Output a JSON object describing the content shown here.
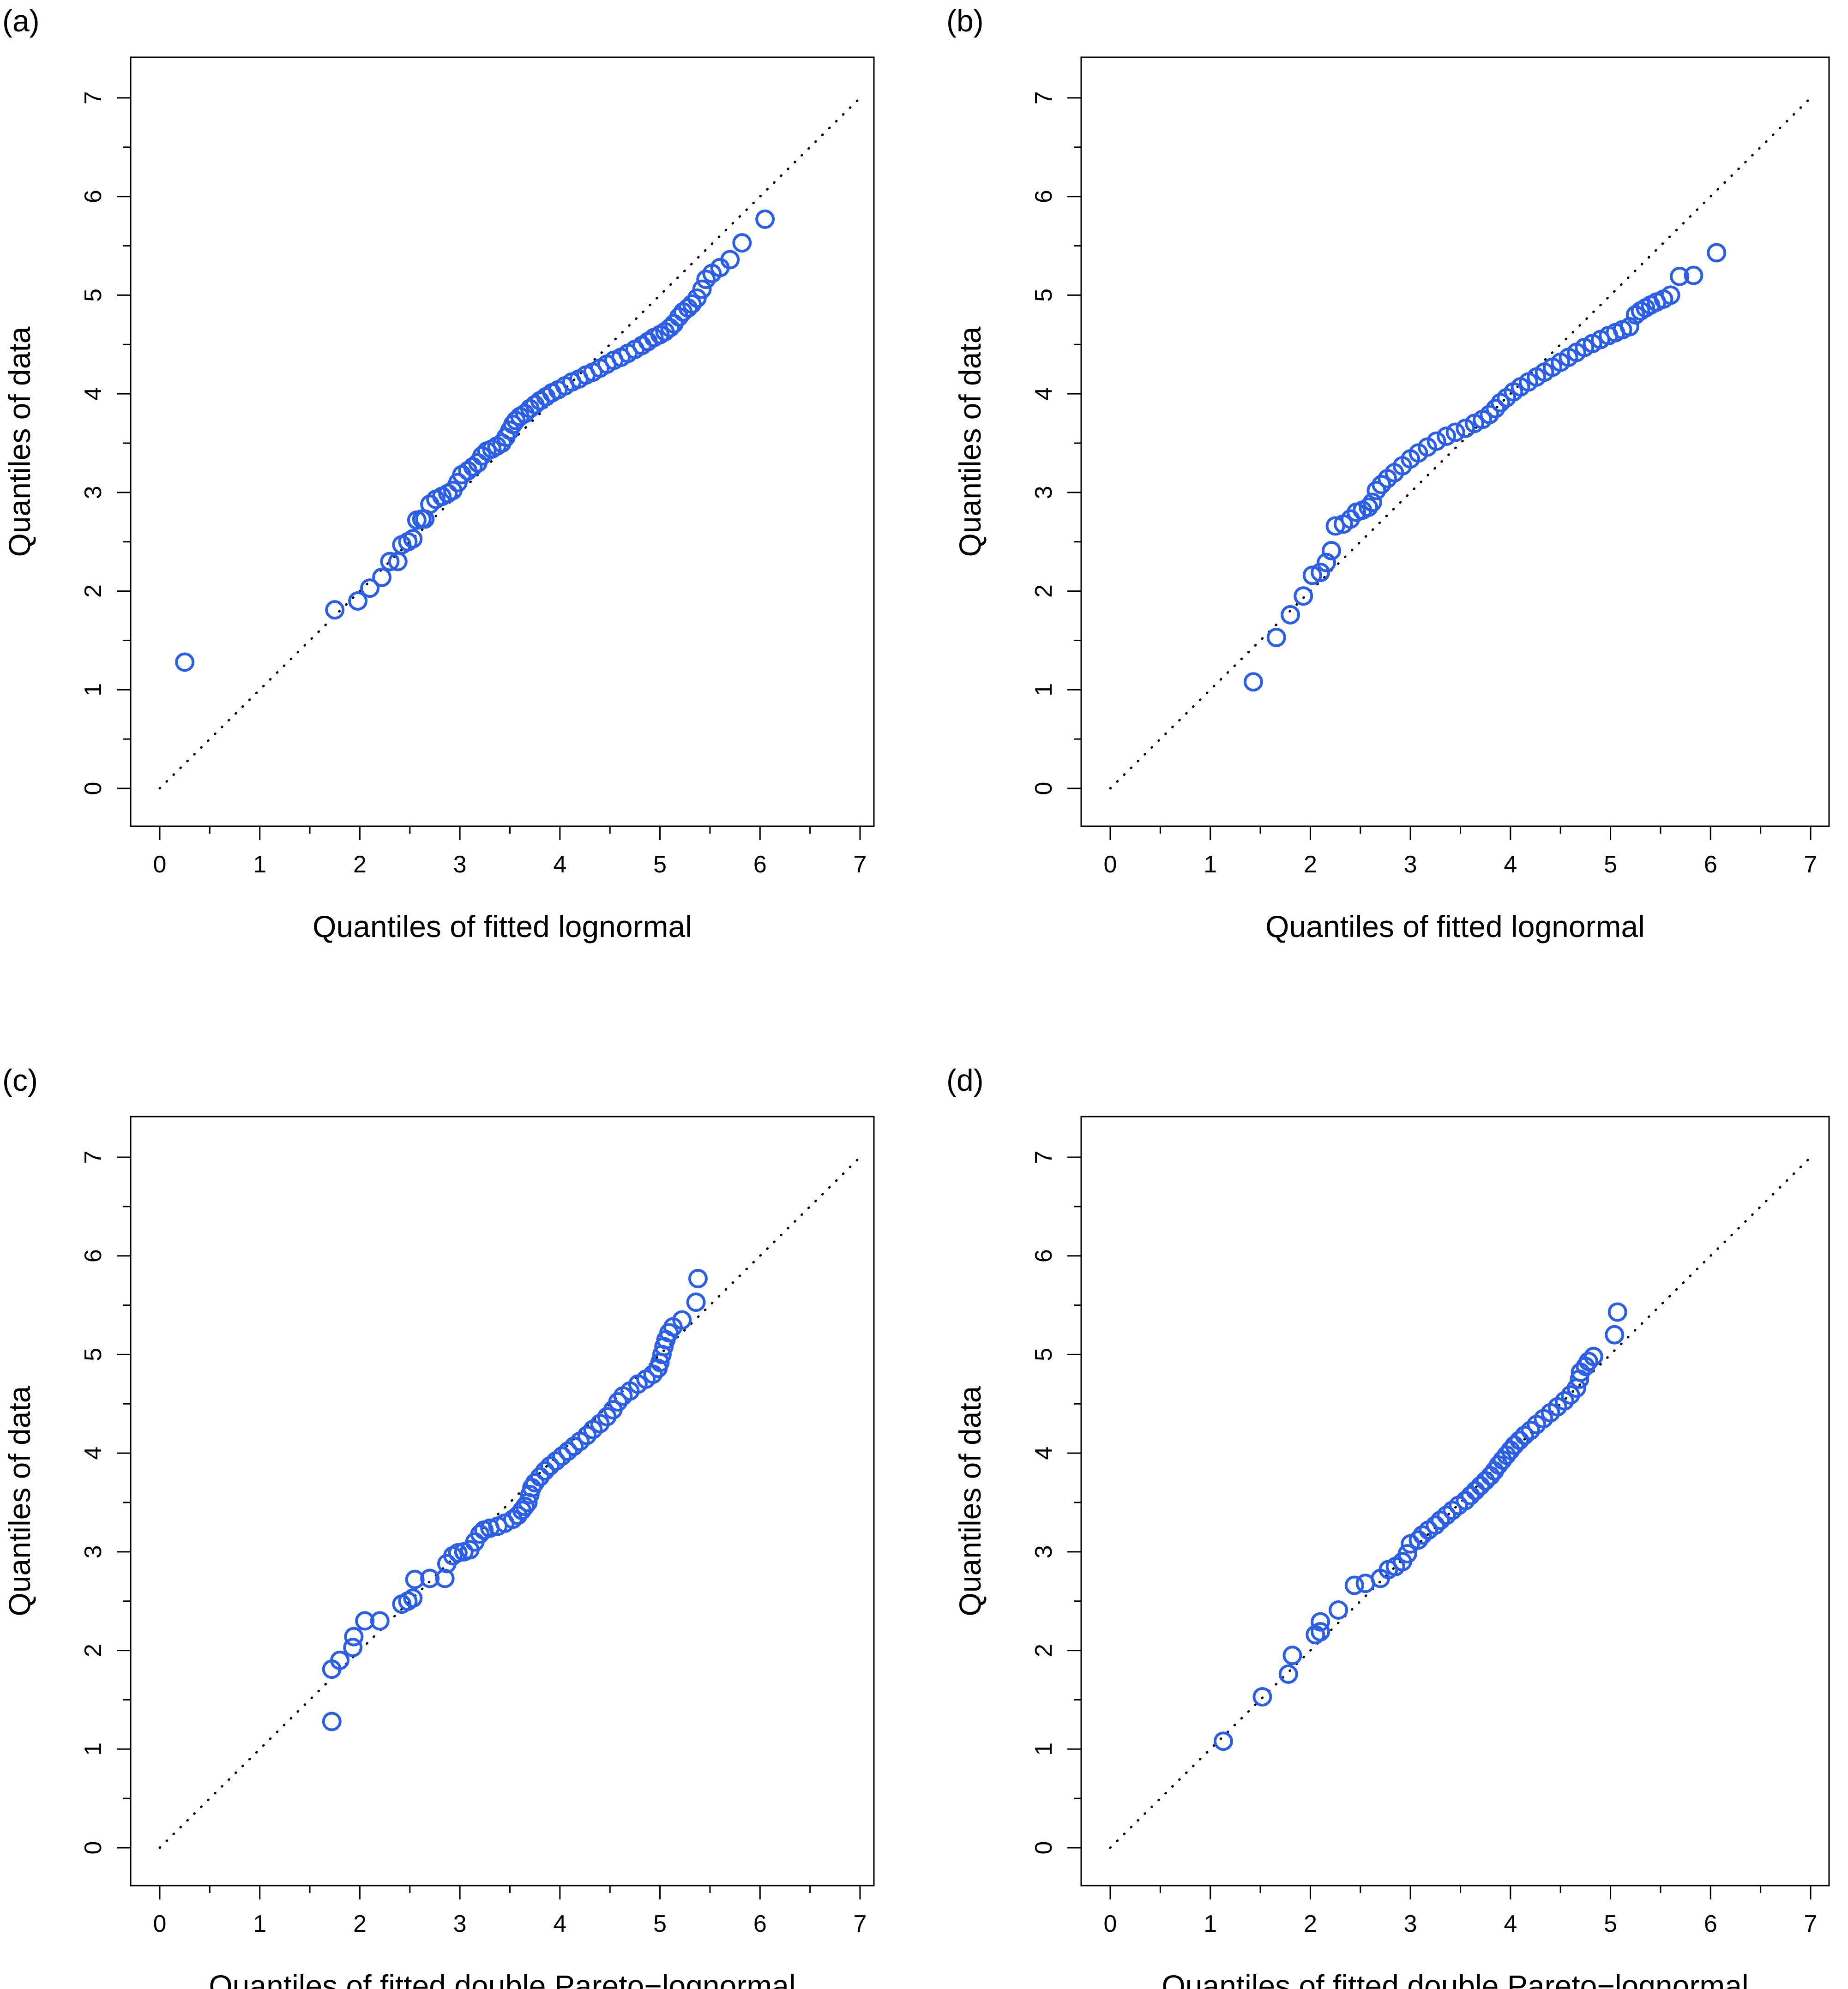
{
  "page": {
    "background": "#ffffff"
  },
  "style": {
    "marker_color": "#2b5fe8",
    "reference_line_color": "#000000",
    "axis_color": "#000000"
  },
  "chart_data": [
    {
      "panel_label": "(a)",
      "type": "scatter",
      "xlabel": "Quantiles of fitted lognormal",
      "ylabel": "Quantiles of data",
      "xlim": [
        0,
        7
      ],
      "ylim": [
        0,
        7
      ],
      "xticks": [
        "0",
        "1",
        "2",
        "3",
        "4",
        "5",
        "6",
        "7"
      ],
      "yticks": [
        "0",
        "1",
        "2",
        "3",
        "4",
        "5",
        "6",
        "7"
      ],
      "grid": false,
      "reference_line": {
        "style": "dotted",
        "x": [
          0,
          7
        ],
        "y": [
          0,
          7
        ]
      },
      "points": [
        [
          0.25,
          1.28
        ],
        [
          1.75,
          1.81
        ],
        [
          1.98,
          1.9
        ],
        [
          2.1,
          2.03
        ],
        [
          2.22,
          2.14
        ],
        [
          2.3,
          2.3
        ],
        [
          2.38,
          2.3
        ],
        [
          2.42,
          2.47
        ],
        [
          2.48,
          2.5
        ],
        [
          2.53,
          2.53
        ],
        [
          2.57,
          2.72
        ],
        [
          2.62,
          2.73
        ],
        [
          2.65,
          2.73
        ],
        [
          2.7,
          2.88
        ],
        [
          2.76,
          2.93
        ],
        [
          2.82,
          2.96
        ],
        [
          2.88,
          2.99
        ],
        [
          2.93,
          3.02
        ],
        [
          2.98,
          3.1
        ],
        [
          3.02,
          3.18
        ],
        [
          3.08,
          3.22
        ],
        [
          3.13,
          3.26
        ],
        [
          3.18,
          3.3
        ],
        [
          3.22,
          3.37
        ],
        [
          3.27,
          3.42
        ],
        [
          3.32,
          3.44
        ],
        [
          3.37,
          3.47
        ],
        [
          3.42,
          3.5
        ],
        [
          3.46,
          3.56
        ],
        [
          3.5,
          3.63
        ],
        [
          3.53,
          3.69
        ],
        [
          3.56,
          3.73
        ],
        [
          3.6,
          3.77
        ],
        [
          3.65,
          3.8
        ],
        [
          3.7,
          3.85
        ],
        [
          3.75,
          3.89
        ],
        [
          3.8,
          3.93
        ],
        [
          3.86,
          3.97
        ],
        [
          3.92,
          4.01
        ],
        [
          3.98,
          4.04
        ],
        [
          4.05,
          4.08
        ],
        [
          4.12,
          4.12
        ],
        [
          4.19,
          4.15
        ],
        [
          4.26,
          4.19
        ],
        [
          4.33,
          4.22
        ],
        [
          4.4,
          4.26
        ],
        [
          4.47,
          4.3
        ],
        [
          4.54,
          4.34
        ],
        [
          4.61,
          4.37
        ],
        [
          4.68,
          4.41
        ],
        [
          4.75,
          4.45
        ],
        [
          4.82,
          4.49
        ],
        [
          4.88,
          4.53
        ],
        [
          4.94,
          4.57
        ],
        [
          5.0,
          4.6
        ],
        [
          5.05,
          4.63
        ],
        [
          5.1,
          4.67
        ],
        [
          5.14,
          4.71
        ],
        [
          5.19,
          4.78
        ],
        [
          5.23,
          4.83
        ],
        [
          5.28,
          4.87
        ],
        [
          5.32,
          4.91
        ],
        [
          5.37,
          4.97
        ],
        [
          5.42,
          5.06
        ],
        [
          5.46,
          5.16
        ],
        [
          5.52,
          5.22
        ],
        [
          5.6,
          5.28
        ],
        [
          5.7,
          5.36
        ],
        [
          5.82,
          5.53
        ],
        [
          6.05,
          5.77
        ]
      ]
    },
    {
      "panel_label": "(b)",
      "type": "scatter",
      "xlabel": "Quantiles of fitted lognormal",
      "ylabel": "Quantiles of data",
      "xlim": [
        0,
        7
      ],
      "ylim": [
        0,
        7
      ],
      "xticks": [
        "0",
        "1",
        "2",
        "3",
        "4",
        "5",
        "6",
        "7"
      ],
      "yticks": [
        "0",
        "1",
        "2",
        "3",
        "4",
        "5",
        "6",
        "7"
      ],
      "grid": false,
      "reference_line": {
        "style": "dotted",
        "x": [
          0,
          7
        ],
        "y": [
          0,
          7
        ]
      },
      "points": [
        [
          1.43,
          1.08
        ],
        [
          1.66,
          1.53
        ],
        [
          1.8,
          1.76
        ],
        [
          1.93,
          1.95
        ],
        [
          2.02,
          2.16
        ],
        [
          2.1,
          2.19
        ],
        [
          2.16,
          2.29
        ],
        [
          2.21,
          2.41
        ],
        [
          2.25,
          2.66
        ],
        [
          2.33,
          2.68
        ],
        [
          2.4,
          2.73
        ],
        [
          2.46,
          2.8
        ],
        [
          2.52,
          2.82
        ],
        [
          2.58,
          2.85
        ],
        [
          2.62,
          2.9
        ],
        [
          2.66,
          3.02
        ],
        [
          2.71,
          3.08
        ],
        [
          2.77,
          3.14
        ],
        [
          2.84,
          3.2
        ],
        [
          2.92,
          3.27
        ],
        [
          3.0,
          3.34
        ],
        [
          3.08,
          3.4
        ],
        [
          3.17,
          3.46
        ],
        [
          3.26,
          3.52
        ],
        [
          3.36,
          3.57
        ],
        [
          3.45,
          3.61
        ],
        [
          3.55,
          3.65
        ],
        [
          3.64,
          3.7
        ],
        [
          3.72,
          3.74
        ],
        [
          3.79,
          3.79
        ],
        [
          3.85,
          3.85
        ],
        [
          3.9,
          3.91
        ],
        [
          3.96,
          3.96
        ],
        [
          4.03,
          4.02
        ],
        [
          4.1,
          4.07
        ],
        [
          4.18,
          4.12
        ],
        [
          4.26,
          4.17
        ],
        [
          4.34,
          4.22
        ],
        [
          4.42,
          4.27
        ],
        [
          4.5,
          4.32
        ],
        [
          4.58,
          4.37
        ],
        [
          4.66,
          4.42
        ],
        [
          4.74,
          4.47
        ],
        [
          4.82,
          4.51
        ],
        [
          4.9,
          4.55
        ],
        [
          4.98,
          4.59
        ],
        [
          5.05,
          4.62
        ],
        [
          5.12,
          4.65
        ],
        [
          5.19,
          4.68
        ],
        [
          5.25,
          4.8
        ],
        [
          5.3,
          4.84
        ],
        [
          5.35,
          4.87
        ],
        [
          5.4,
          4.9
        ],
        [
          5.46,
          4.93
        ],
        [
          5.53,
          4.96
        ],
        [
          5.6,
          5.0
        ],
        [
          5.69,
          5.19
        ],
        [
          5.83,
          5.2
        ],
        [
          6.06,
          5.43
        ]
      ]
    },
    {
      "panel_label": "(c)",
      "type": "scatter",
      "xlabel": "Quantiles of fitted double Pareto−lognormal",
      "ylabel": "Quantiles of data",
      "xlim": [
        0,
        7
      ],
      "ylim": [
        0,
        7
      ],
      "xticks": [
        "0",
        "1",
        "2",
        "3",
        "4",
        "5",
        "6",
        "7"
      ],
      "yticks": [
        "0",
        "1",
        "2",
        "3",
        "4",
        "5",
        "6",
        "7"
      ],
      "grid": false,
      "reference_line": {
        "style": "dotted",
        "x": [
          0,
          7
        ],
        "y": [
          0,
          7
        ]
      },
      "points": [
        [
          1.72,
          1.28
        ],
        [
          1.72,
          1.81
        ],
        [
          1.8,
          1.9
        ],
        [
          1.93,
          2.03
        ],
        [
          1.94,
          2.14
        ],
        [
          2.05,
          2.3
        ],
        [
          2.2,
          2.3
        ],
        [
          2.42,
          2.47
        ],
        [
          2.48,
          2.5
        ],
        [
          2.53,
          2.53
        ],
        [
          2.55,
          2.72
        ],
        [
          2.7,
          2.73
        ],
        [
          2.85,
          2.73
        ],
        [
          2.87,
          2.88
        ],
        [
          2.93,
          2.96
        ],
        [
          2.98,
          2.99
        ],
        [
          3.04,
          3.0
        ],
        [
          3.1,
          3.02
        ],
        [
          3.15,
          3.1
        ],
        [
          3.2,
          3.18
        ],
        [
          3.24,
          3.22
        ],
        [
          3.3,
          3.24
        ],
        [
          3.38,
          3.26
        ],
        [
          3.45,
          3.29
        ],
        [
          3.53,
          3.33
        ],
        [
          3.58,
          3.37
        ],
        [
          3.62,
          3.42
        ],
        [
          3.65,
          3.46
        ],
        [
          3.68,
          3.5
        ],
        [
          3.7,
          3.58
        ],
        [
          3.72,
          3.65
        ],
        [
          3.75,
          3.7
        ],
        [
          3.8,
          3.76
        ],
        [
          3.85,
          3.82
        ],
        [
          3.9,
          3.87
        ],
        [
          3.96,
          3.92
        ],
        [
          4.02,
          3.97
        ],
        [
          4.08,
          4.02
        ],
        [
          4.14,
          4.07
        ],
        [
          4.2,
          4.12
        ],
        [
          4.27,
          4.18
        ],
        [
          4.33,
          4.24
        ],
        [
          4.4,
          4.3
        ],
        [
          4.47,
          4.37
        ],
        [
          4.53,
          4.44
        ],
        [
          4.58,
          4.52
        ],
        [
          4.63,
          4.58
        ],
        [
          4.7,
          4.63
        ],
        [
          4.78,
          4.7
        ],
        [
          4.86,
          4.75
        ],
        [
          4.93,
          4.8
        ],
        [
          4.98,
          4.86
        ],
        [
          5.0,
          4.92
        ],
        [
          5.02,
          5.0
        ],
        [
          5.04,
          5.08
        ],
        [
          5.06,
          5.15
        ],
        [
          5.09,
          5.22
        ],
        [
          5.13,
          5.28
        ],
        [
          5.22,
          5.35
        ],
        [
          5.36,
          5.53
        ],
        [
          5.38,
          5.77
        ]
      ]
    },
    {
      "panel_label": "(d)",
      "type": "scatter",
      "xlabel": "Quantiles of fitted double Pareto−lognormal",
      "ylabel": "Quantiles of data",
      "xlim": [
        0,
        7
      ],
      "ylim": [
        0,
        7
      ],
      "xticks": [
        "0",
        "1",
        "2",
        "3",
        "4",
        "5",
        "6",
        "7"
      ],
      "yticks": [
        "0",
        "1",
        "2",
        "3",
        "4",
        "5",
        "6",
        "7"
      ],
      "grid": false,
      "reference_line": {
        "style": "dotted",
        "x": [
          0,
          7
        ],
        "y": [
          0,
          7
        ]
      },
      "points": [
        [
          1.13,
          1.08
        ],
        [
          1.52,
          1.53
        ],
        [
          1.78,
          1.76
        ],
        [
          1.82,
          1.95
        ],
        [
          2.05,
          2.16
        ],
        [
          2.1,
          2.19
        ],
        [
          2.1,
          2.29
        ],
        [
          2.28,
          2.41
        ],
        [
          2.44,
          2.66
        ],
        [
          2.55,
          2.68
        ],
        [
          2.7,
          2.73
        ],
        [
          2.78,
          2.82
        ],
        [
          2.85,
          2.85
        ],
        [
          2.92,
          2.9
        ],
        [
          2.97,
          2.98
        ],
        [
          3.0,
          3.08
        ],
        [
          3.08,
          3.12
        ],
        [
          3.12,
          3.17
        ],
        [
          3.18,
          3.22
        ],
        [
          3.25,
          3.27
        ],
        [
          3.3,
          3.32
        ],
        [
          3.36,
          3.37
        ],
        [
          3.42,
          3.42
        ],
        [
          3.48,
          3.47
        ],
        [
          3.55,
          3.52
        ],
        [
          3.6,
          3.57
        ],
        [
          3.65,
          3.62
        ],
        [
          3.7,
          3.67
        ],
        [
          3.75,
          3.72
        ],
        [
          3.8,
          3.77
        ],
        [
          3.84,
          3.82
        ],
        [
          3.88,
          3.88
        ],
        [
          3.92,
          3.93
        ],
        [
          3.96,
          3.98
        ],
        [
          4.0,
          4.03
        ],
        [
          4.04,
          4.08
        ],
        [
          4.09,
          4.13
        ],
        [
          4.14,
          4.18
        ],
        [
          4.2,
          4.23
        ],
        [
          4.26,
          4.29
        ],
        [
          4.33,
          4.35
        ],
        [
          4.4,
          4.41
        ],
        [
          4.47,
          4.47
        ],
        [
          4.54,
          4.53
        ],
        [
          4.6,
          4.59
        ],
        [
          4.66,
          4.66
        ],
        [
          4.69,
          4.75
        ],
        [
          4.7,
          4.82
        ],
        [
          4.75,
          4.88
        ],
        [
          4.78,
          4.93
        ],
        [
          4.83,
          4.98
        ],
        [
          5.04,
          5.2
        ],
        [
          5.07,
          5.43
        ]
      ]
    }
  ]
}
